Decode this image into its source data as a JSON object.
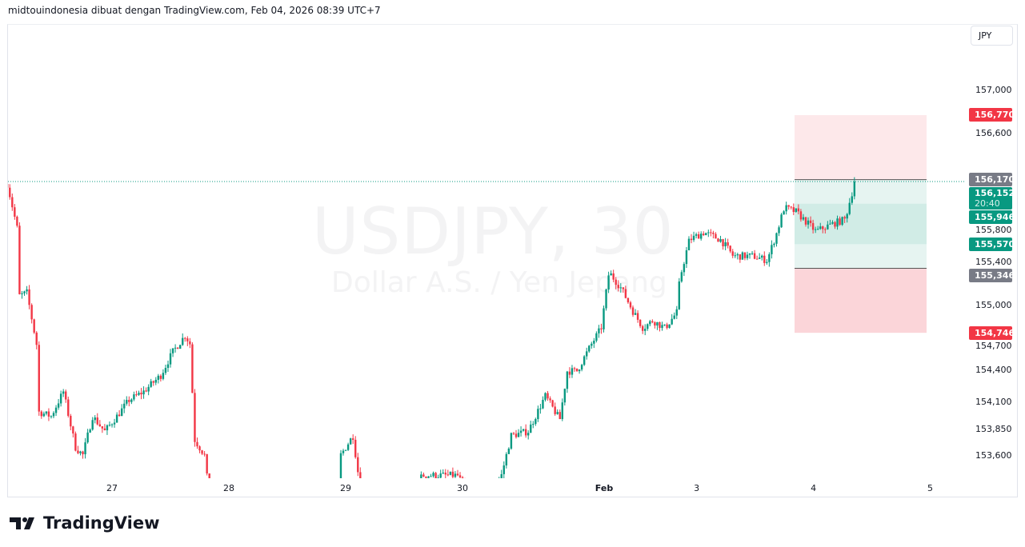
{
  "header": {
    "caption": "midtouindonesia dibuat dengan TradingView.com, Feb 04, 2026 08:39 UTC+7"
  },
  "watermark": {
    "symbol": "USDJPY, 30",
    "description": "Dollar A.S. / Yen Jepang"
  },
  "currency_button": "JPY",
  "footer": {
    "logo_text": "TradingView"
  },
  "colors": {
    "up": "#089981",
    "down": "#f23645",
    "stop_zone": "#fde8ea",
    "stop_zone_lower": "#fbd5d9",
    "target_zone": "#e6f4f1",
    "target_zone_mid": "#d1ece6",
    "neutral_tag": "#787b86"
  },
  "chart_data": {
    "type": "candlestick",
    "symbol": "USDJPY",
    "interval": "30",
    "y_ticks": [
      "157,000",
      "156,600",
      "155,800",
      "155,400",
      "155,000",
      "154,700",
      "154,400",
      "154,100",
      "153,850",
      "153,600"
    ],
    "y_tick_values": [
      157000,
      156600,
      155800,
      155400,
      155000,
      154700,
      154400,
      154100,
      153850,
      153600
    ],
    "x_ticks": [
      "27",
      "28",
      "29",
      "30",
      "Feb",
      "3",
      "4",
      "5"
    ],
    "price_path": [
      [
        "01-26 02:30",
        156130
      ],
      [
        "01-26 04:30",
        155720
      ],
      [
        "01-26 05:00",
        155090
      ],
      [
        "01-26 06:30",
        155120
      ],
      [
        "01-26 08:30",
        154640
      ],
      [
        "01-26 09:00",
        154010
      ],
      [
        "01-26 11:30",
        153970
      ],
      [
        "01-26 14:00",
        154200
      ],
      [
        "01-26 16:30",
        153680
      ],
      [
        "01-26 18:00",
        153610
      ],
      [
        "01-26 20:00",
        153970
      ],
      [
        "01-26 22:30",
        153830
      ],
      [
        "01-27 01:00",
        153970
      ],
      [
        "01-27 03:30",
        154120
      ],
      [
        "01-27 06:30",
        154200
      ],
      [
        "01-27 10:00",
        154350
      ],
      [
        "01-27 12:30",
        154570
      ],
      [
        "01-27 15:00",
        154720
      ],
      [
        "01-27 16:00",
        154650
      ],
      [
        "01-27 17:00",
        153750
      ],
      [
        "01-27 19:00",
        153610
      ],
      [
        "01-27 20:30",
        153000
      ],
      [
        "01-28 22:00",
        153100
      ],
      [
        "01-28 23:00",
        153610
      ],
      [
        "01-29 01:30",
        153790
      ],
      [
        "01-29 02:30",
        153460
      ],
      [
        "01-29 04:30",
        153000
      ],
      [
        "01-29 16:00",
        153420
      ],
      [
        "01-29 23:00",
        153420
      ],
      [
        "01-30 03:30",
        153070
      ],
      [
        "01-30 08:00",
        153420
      ],
      [
        "01-30 10:00",
        153790
      ],
      [
        "01-30 13:30",
        153830
      ],
      [
        "01-30 17:00",
        154160
      ],
      [
        "01-30 20:00",
        153940
      ],
      [
        "01-30 21:30",
        154390
      ],
      [
        "01-30 23:30",
        154390
      ],
      [
        "01-31 02:30",
        154640
      ],
      [
        "01-31 04:30",
        154790
      ],
      [
        "02-02 06:00",
        155310
      ],
      [
        "02-02 08:30",
        155160
      ],
      [
        "02-02 11:00",
        154940
      ],
      [
        "02-02 13:00",
        154790
      ],
      [
        "02-02 15:00",
        154860
      ],
      [
        "02-02 17:30",
        154790
      ],
      [
        "02-02 20:00",
        154940
      ],
      [
        "02-02 20:30",
        155240
      ],
      [
        "02-02 22:30",
        155610
      ],
      [
        "02-03 01:30",
        155680
      ],
      [
        "02-03 05:00",
        155610
      ],
      [
        "02-03 07:30",
        155460
      ],
      [
        "02-03 11:30",
        155460
      ],
      [
        "02-03 14:30",
        155420
      ],
      [
        "02-03 16:30",
        155680
      ],
      [
        "02-03 18:00",
        155910
      ],
      [
        "02-03 20:30",
        155870
      ],
      [
        "02-03 22:00",
        155800
      ],
      [
        "02-04 00:30",
        155690
      ],
      [
        "02-04 04:00",
        155760
      ],
      [
        "02-04 06:30",
        155800
      ],
      [
        "02-04 08:00",
        156060
      ],
      [
        "02-04 08:30",
        156152
      ]
    ],
    "last_price": "156,152",
    "countdown": "20:40",
    "price_tags": [
      {
        "label": "156,770",
        "value": 156770,
        "kind": "down"
      },
      {
        "label": "156,170",
        "value": 156170,
        "kind": "neutral"
      },
      {
        "label": "155,946",
        "value": 155946,
        "kind": "up"
      },
      {
        "label": "155,570",
        "value": 155570,
        "kind": "up"
      },
      {
        "label": "155,346",
        "value": 155346,
        "kind": "neutral"
      },
      {
        "label": "154,746",
        "value": 154746,
        "kind": "down"
      }
    ],
    "position_tools": [
      {
        "entry": 156170,
        "stop": 156770,
        "target": 155346
      },
      {
        "entry": 155346,
        "stop": 154746,
        "target": 155946
      },
      {
        "zone_low": 155570,
        "zone_high": 155946
      }
    ]
  }
}
